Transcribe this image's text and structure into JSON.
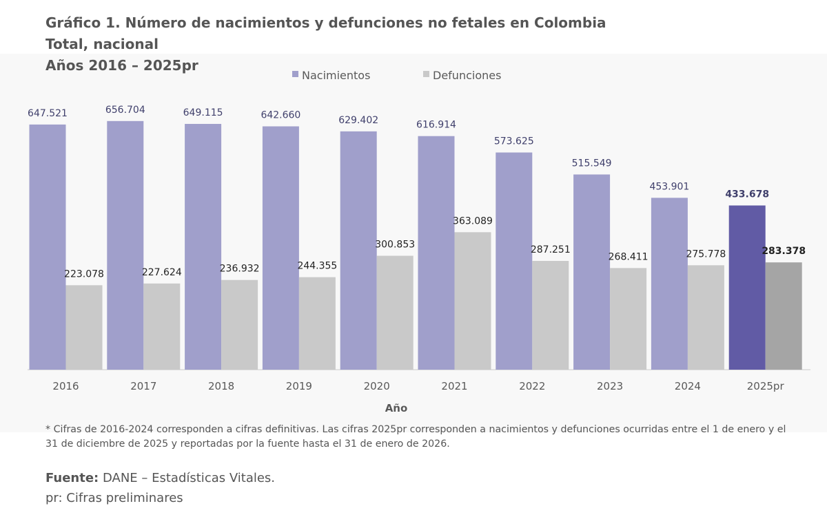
{
  "title": {
    "line1": "Gráfico 1. Número de nacimientos y defunciones no fetales en Colombia",
    "line2": "Total, nacional",
    "line3": "Años 2016 – 2025pr"
  },
  "chart_data": {
    "type": "bar",
    "categories": [
      "2016",
      "2017",
      "2018",
      "2019",
      "2020",
      "2021",
      "2022",
      "2023",
      "2024",
      "2025pr"
    ],
    "series": [
      {
        "name": "Nacimientos",
        "values": [
          647521,
          656704,
          649115,
          642660,
          629402,
          616914,
          573625,
          515549,
          453901,
          433678
        ],
        "labels": [
          "647.521",
          "656.704",
          "649.115",
          "642.660",
          "629.402",
          "616.914",
          "573.625",
          "515.549",
          "453.901",
          "433.678"
        ],
        "color": "#a09fcb",
        "highlight_color": "#615ba5",
        "label_color": "#3f3f6b"
      },
      {
        "name": "Defunciones",
        "values": [
          223078,
          227624,
          236932,
          244355,
          300853,
          363089,
          287251,
          268411,
          275778,
          283378
        ],
        "labels": [
          "223.078",
          "227.624",
          "236.932",
          "244.355",
          "300.853",
          "363.089",
          "287.251",
          "268.411",
          "275.778",
          "283.378"
        ],
        "color": "#c9c9c9",
        "highlight_color": "#a5a5a5",
        "label_color": "#222222"
      }
    ],
    "highlight_category": "2025pr",
    "xlabel": "Año",
    "ylabel": "",
    "ylim": [
      0,
      660000
    ],
    "legend": "top-center",
    "grid": false
  },
  "footnote": "* Cifras de 2016-2024 corresponden a cifras definitivas. Las cifras 2025pr corresponden a nacimientos y defunciones ocurridas entre el 1 de enero y el 31 de diciembre de 2025 y reportadas por la fuente hasta el 31 de enero de 2026.",
  "source": {
    "label": "Fuente:",
    "text": " DANE – Estadísticas Vitales.",
    "note": "pr: Cifras preliminares"
  }
}
